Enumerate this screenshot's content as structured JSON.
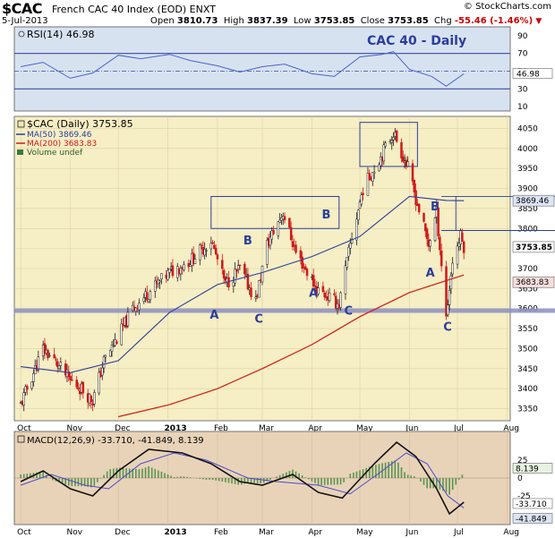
{
  "header": {
    "symbol": "$CAC",
    "name": "French CAC 40 Index (EOD)  ENXT",
    "copyright": "© StockCharts.com",
    "date": "5-Jul-2013",
    "open_label": "Open",
    "open": "3810.73",
    "high_label": "High",
    "high": "3837.39",
    "low_label": "Low",
    "low": "3753.85",
    "close_label": "Close",
    "close": "3753.85",
    "chg_label": "Chg",
    "chg": "-55.46 (-1.46%)"
  },
  "colors": {
    "rsi_bg": "#d7e2f1",
    "price_bg": "#f6eec4",
    "macd_bg": "#e9d3b8",
    "rsi_line": "#4a64c8",
    "ma50": "#2b3d9c",
    "ma200": "#d01818",
    "support": "#8d8fc0",
    "box": "#2b3d9c",
    "label": "#2b3d9c"
  },
  "chart_data": [
    {
      "id": "rsi",
      "type": "line",
      "legend": "RSI(14) 46.98",
      "annotation": "CAC 40 - Daily",
      "y_ticks": [
        "90",
        "70",
        "50",
        "30",
        "10"
      ],
      "last_value": "46.98",
      "levels": [
        70,
        50,
        30
      ],
      "x": [
        "2012-10-01",
        "2012-10-15",
        "2012-11-01",
        "2012-11-15",
        "2012-12-01",
        "2012-12-15",
        "2013-01-02",
        "2013-01-15",
        "2013-02-01",
        "2013-02-15",
        "2013-03-01",
        "2013-03-15",
        "2013-04-01",
        "2013-04-15",
        "2013-05-01",
        "2013-05-15",
        "2013-05-22",
        "2013-06-01",
        "2013-06-15",
        "2013-06-24",
        "2013-07-05"
      ],
      "values": [
        55,
        60,
        42,
        48,
        68,
        64,
        69,
        62,
        56,
        49,
        55,
        58,
        47,
        44,
        66,
        69,
        72,
        52,
        44,
        33,
        47
      ]
    },
    {
      "id": "price",
      "type": "candlestick",
      "legend": [
        "$CAC (Daily) 3753.85",
        "MA(50) 3869.46",
        "MA(200) 3683.83",
        "Volume undef"
      ],
      "y_ticks": [
        "4050",
        "4000",
        "3950",
        "3900",
        "3850",
        "3800",
        "3750",
        "3700",
        "3650",
        "3600",
        "3550",
        "3500",
        "3450",
        "3400",
        "3350"
      ],
      "ylim": [
        3320,
        4080
      ],
      "x_ticks": [
        "Oct",
        "Nov",
        "Dec",
        "2013",
        "Feb",
        "Mar",
        "Apr",
        "May",
        "Jun",
        "Jul",
        "Aug"
      ],
      "ohlc_points": [
        [
          "2012-10-01",
          3360
        ],
        [
          "2012-10-08",
          3430
        ],
        [
          "2012-10-15",
          3500
        ],
        [
          "2012-10-22",
          3470
        ],
        [
          "2012-11-01",
          3420
        ],
        [
          "2012-11-08",
          3400
        ],
        [
          "2012-11-15",
          3370
        ],
        [
          "2012-11-22",
          3470
        ],
        [
          "2012-12-01",
          3530
        ],
        [
          "2012-12-10",
          3600
        ],
        [
          "2012-12-20",
          3640
        ],
        [
          "2013-01-02",
          3690
        ],
        [
          "2013-01-15",
          3720
        ],
        [
          "2013-01-28",
          3770
        ],
        [
          "2013-02-06",
          3660
        ],
        [
          "2013-02-15",
          3700
        ],
        [
          "2013-02-25",
          3620
        ],
        [
          "2013-03-04",
          3760
        ],
        [
          "2013-03-14",
          3840
        ],
        [
          "2013-03-22",
          3740
        ],
        [
          "2013-04-04",
          3650
        ],
        [
          "2013-04-18",
          3610
        ],
        [
          "2013-04-25",
          3760
        ],
        [
          "2013-05-03",
          3900
        ],
        [
          "2013-05-14",
          3980
        ],
        [
          "2013-05-22",
          4040
        ],
        [
          "2013-05-31",
          3950
        ],
        [
          "2013-06-06",
          3860
        ],
        [
          "2013-06-13",
          3760
        ],
        [
          "2013-06-18",
          3840
        ],
        [
          "2013-06-24",
          3580
        ],
        [
          "2013-06-28",
          3720
        ],
        [
          "2013-07-03",
          3780
        ],
        [
          "2013-07-05",
          3754
        ]
      ],
      "ma50": {
        "name": "MA(50)",
        "last": "3869.46",
        "points": [
          [
            "2012-10-01",
            3455
          ],
          [
            "2012-11-01",
            3440
          ],
          [
            "2012-12-01",
            3470
          ],
          [
            "2013-01-02",
            3590
          ],
          [
            "2013-02-01",
            3660
          ],
          [
            "2013-03-01",
            3690
          ],
          [
            "2013-04-01",
            3730
          ],
          [
            "2013-05-01",
            3780
          ],
          [
            "2013-06-01",
            3880
          ],
          [
            "2013-06-24",
            3870
          ],
          [
            "2013-07-05",
            3869.46
          ]
        ]
      },
      "ma200": {
        "name": "MA(200)",
        "last": "3683.83",
        "points": [
          [
            "2012-12-01",
            3330
          ],
          [
            "2013-01-02",
            3360
          ],
          [
            "2013-02-01",
            3400
          ],
          [
            "2013-03-01",
            3450
          ],
          [
            "2013-04-01",
            3510
          ],
          [
            "2013-05-01",
            3580
          ],
          [
            "2013-06-01",
            3640
          ],
          [
            "2013-07-05",
            3683.83
          ]
        ]
      },
      "support": 3595,
      "resistance": [
        3880,
        3795
      ],
      "boxes": [
        {
          "x0": "2013-01-28",
          "x1": "2013-04-18",
          "y0": 3800,
          "y1": 3880
        },
        {
          "x0": "2013-05-01",
          "x1": "2013-06-06",
          "y0": 3955,
          "y1": 4065
        }
      ],
      "wave_labels": [
        {
          "text": "A",
          "x": "2013-01-30",
          "y": 3575
        },
        {
          "text": "B",
          "x": "2013-02-20",
          "y": 3760
        },
        {
          "text": "C",
          "x": "2013-02-27",
          "y": 3565
        },
        {
          "text": "A",
          "x": "2013-04-02",
          "y": 3630
        },
        {
          "text": "B",
          "x": "2013-04-10",
          "y": 3825
        },
        {
          "text": "C",
          "x": "2013-04-24",
          "y": 3585
        },
        {
          "text": "B",
          "x": "2013-06-17",
          "y": 3845
        },
        {
          "text": "A",
          "x": "2013-06-14",
          "y": 3680
        },
        {
          "text": "C",
          "x": "2013-06-25",
          "y": 3545
        }
      ],
      "last_labels": [
        "3869.46",
        "3753.85",
        "3683.83"
      ]
    },
    {
      "id": "macd",
      "type": "line",
      "legend": "MACD(12,26,9) -33.710, -41.849, 8.139",
      "y_ticks": [
        "25",
        "0",
        "-25"
      ],
      "last_labels": [
        "8.139",
        "-33.710",
        "-41.849"
      ],
      "x_ticks": [
        "Oct",
        "Nov",
        "Dec",
        "2013",
        "Feb",
        "Mar",
        "Apr",
        "May",
        "Jun",
        "Jul",
        "Aug"
      ],
      "macd": [
        [
          "2012-10-01",
          -5
        ],
        [
          "2012-10-15",
          10
        ],
        [
          "2012-11-01",
          -15
        ],
        [
          "2012-11-15",
          -25
        ],
        [
          "2012-12-01",
          10
        ],
        [
          "2012-12-20",
          40
        ],
        [
          "2013-01-10",
          35
        ],
        [
          "2013-01-28",
          20
        ],
        [
          "2013-02-15",
          -5
        ],
        [
          "2013-03-01",
          -10
        ],
        [
          "2013-03-20",
          5
        ],
        [
          "2013-04-05",
          -20
        ],
        [
          "2013-04-20",
          -28
        ],
        [
          "2013-05-10",
          20
        ],
        [
          "2013-05-24",
          50
        ],
        [
          "2013-06-05",
          30
        ],
        [
          "2013-06-18",
          -15
        ],
        [
          "2013-06-26",
          -50
        ],
        [
          "2013-07-05",
          -33.71
        ]
      ],
      "signal": [
        [
          "2012-10-01",
          -10
        ],
        [
          "2012-10-20",
          5
        ],
        [
          "2012-11-10",
          -10
        ],
        [
          "2012-11-25",
          -15
        ],
        [
          "2012-12-15",
          20
        ],
        [
          "2013-01-05",
          35
        ],
        [
          "2013-01-25",
          25
        ],
        [
          "2013-02-20",
          0
        ],
        [
          "2013-03-10",
          -5
        ],
        [
          "2013-04-05",
          -10
        ],
        [
          "2013-04-25",
          -22
        ],
        [
          "2013-05-15",
          10
        ],
        [
          "2013-05-30",
          35
        ],
        [
          "2013-06-12",
          20
        ],
        [
          "2013-06-25",
          -25
        ],
        [
          "2013-07-05",
          -41.85
        ]
      ],
      "histogram_last": "8.139"
    }
  ]
}
